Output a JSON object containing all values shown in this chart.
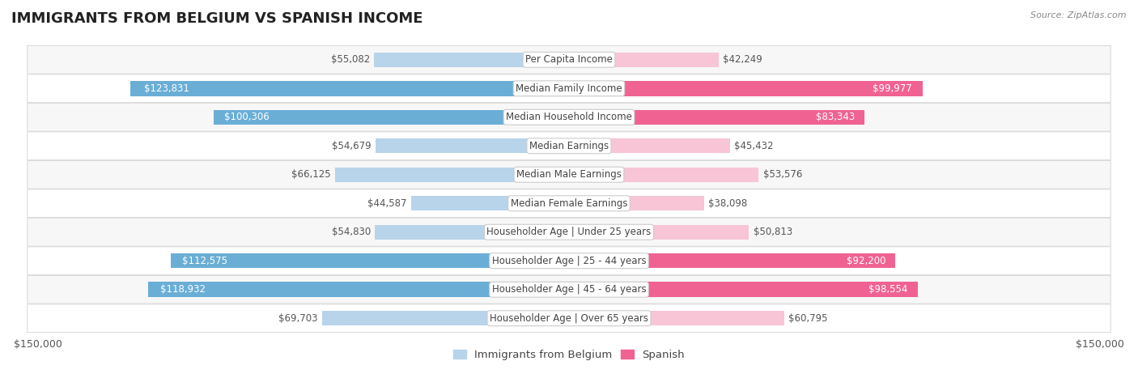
{
  "title": "IMMIGRANTS FROM BELGIUM VS SPANISH INCOME",
  "source": "Source: ZipAtlas.com",
  "categories": [
    "Per Capita Income",
    "Median Family Income",
    "Median Household Income",
    "Median Earnings",
    "Median Male Earnings",
    "Median Female Earnings",
    "Householder Age | Under 25 years",
    "Householder Age | 25 - 44 years",
    "Householder Age | 45 - 64 years",
    "Householder Age | Over 65 years"
  ],
  "belgium_values": [
    55082,
    123831,
    100306,
    54679,
    66125,
    44587,
    54830,
    112575,
    118932,
    69703
  ],
  "spanish_values": [
    42249,
    99977,
    83343,
    45432,
    53576,
    38098,
    50813,
    92200,
    98554,
    60795
  ],
  "belgium_color_light": "#b8d4ea",
  "belgium_color_dark": "#6aaed6",
  "spanish_color_light": "#f7c5d5",
  "spanish_color_dark": "#f06292",
  "inside_text_threshold": 80000,
  "max_value": 150000,
  "background_color": "#ffffff",
  "row_bg_even": "#f7f7f7",
  "row_bg_odd": "#ffffff",
  "row_border_color": "#d8d8d8",
  "title_fontsize": 13,
  "label_fontsize": 8.5,
  "tick_fontsize": 9,
  "legend_fontsize": 9.5,
  "bar_height": 0.52,
  "legend_belgium": "Immigrants from Belgium",
  "legend_spanish": "Spanish"
}
